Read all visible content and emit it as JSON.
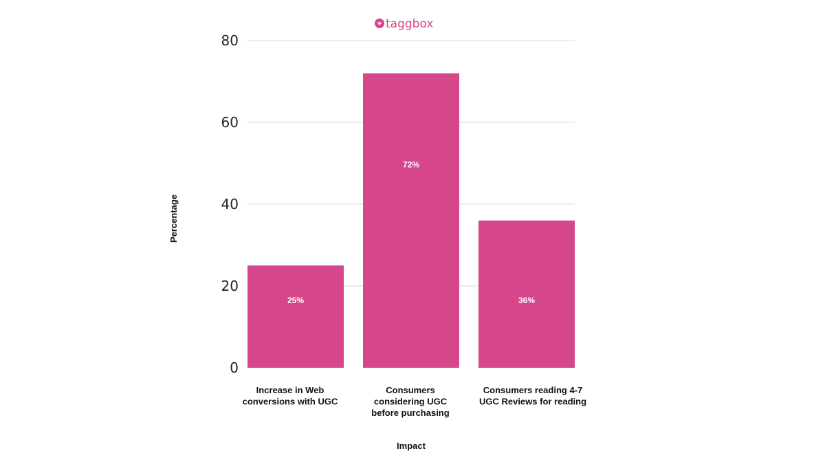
{
  "brand": {
    "logo_text": "taggbox",
    "color": "#d6468a"
  },
  "chart_data": {
    "type": "bar",
    "categories": [
      [
        "Increase in Web",
        "conversions with UGC"
      ],
      [
        "Consumers",
        "considering UGC",
        "before purchasing"
      ],
      [
        "Consumers reading 4-7",
        "UGC Reviews for reading"
      ]
    ],
    "values": [
      25,
      72,
      36
    ],
    "value_labels": [
      "25%",
      "72%",
      "36%"
    ],
    "xlabel": "Impact",
    "ylabel": "Percentage",
    "ylim": [
      0,
      80
    ],
    "yticks": [
      0,
      20,
      40,
      60,
      80
    ],
    "grid": true,
    "bar_color": "#d6468a"
  }
}
